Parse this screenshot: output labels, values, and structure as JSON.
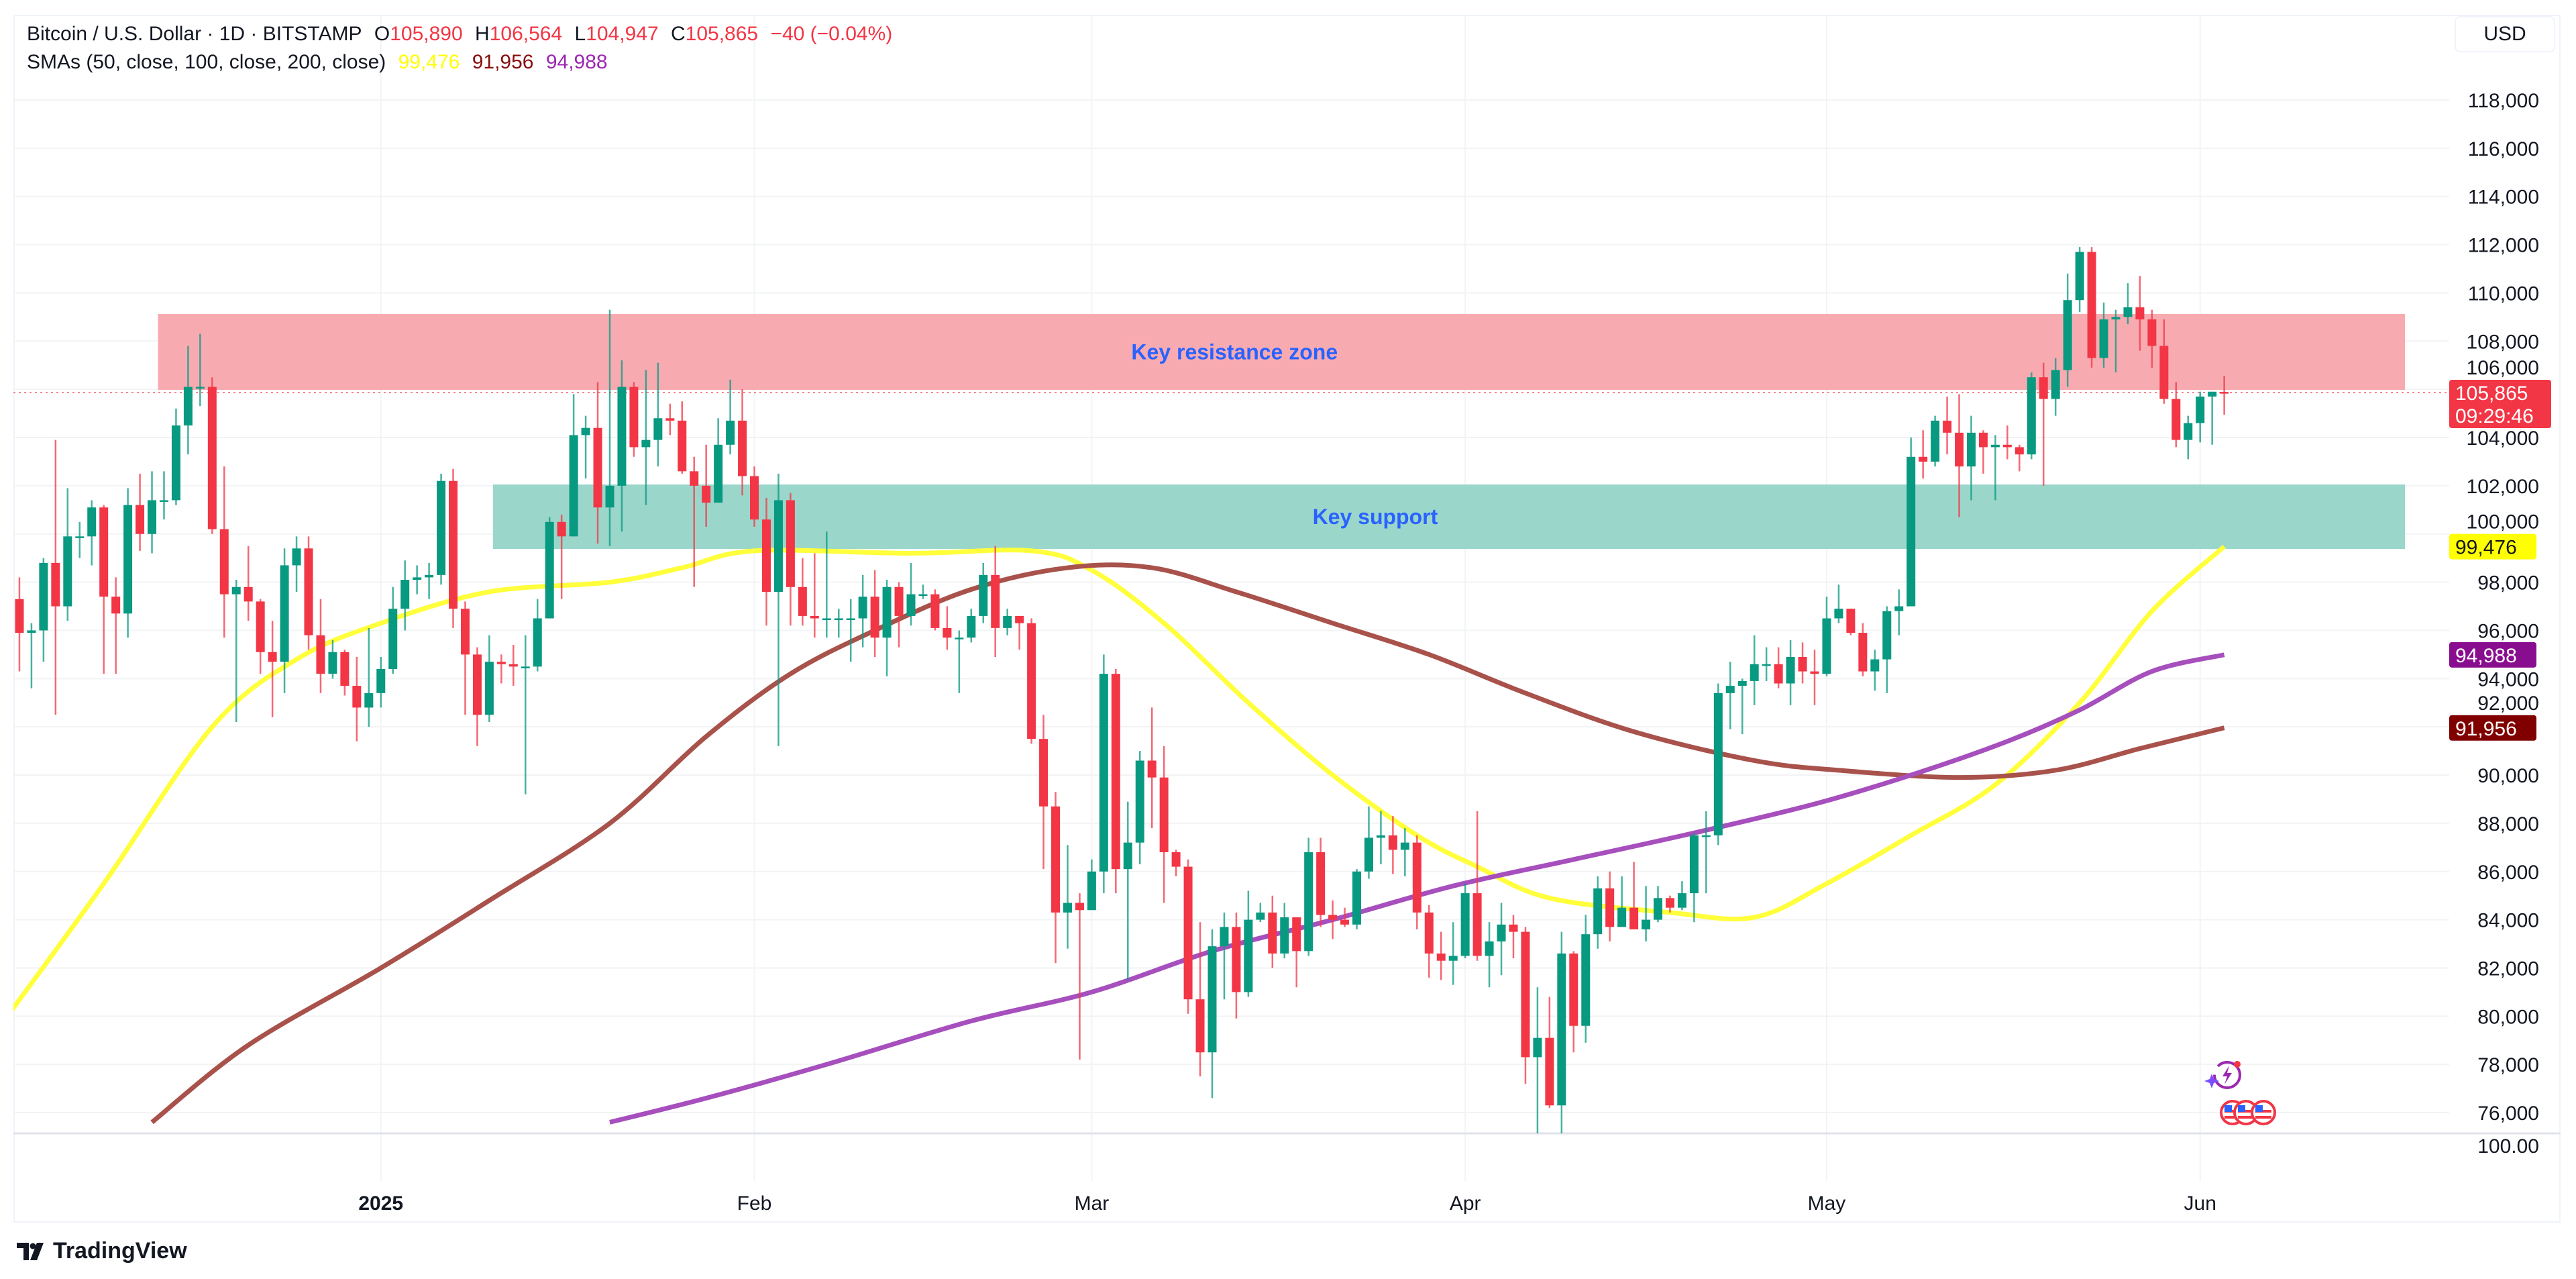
{
  "header": {
    "symbol": "Bitcoin / U.S. Dollar · 1D · BITSTAMP",
    "o_label": "O",
    "o": "105,890",
    "h_label": "H",
    "h": "106,564",
    "l_label": "L",
    "l": "104,947",
    "c_label": "C",
    "c": "105,865",
    "change": "−40 (−0.04%)",
    "sma_label": "SMAs (50, close, 100, close, 200, close)",
    "sma50": "99,476",
    "sma100": "91,956",
    "sma200": "94,988"
  },
  "currency_button": "USD",
  "branding": "TradingView",
  "colors": {
    "up": "#089981",
    "down": "#f23645",
    "sma50": "#ffff3b",
    "sma100": "#a8524b",
    "sma200": "#a64fbd",
    "resistance": "#f7a6ad",
    "support": "#96d4c8",
    "annotation": "#2962ff"
  },
  "chart_data": {
    "type": "candlestick",
    "title": "Bitcoin / U.S. Dollar · 1D · BITSTAMP",
    "start_date": "2024-12-01",
    "unit": "USD thousands",
    "first_open": 96.4,
    "close": [
      97.3,
      95.9,
      96.0,
      98.8,
      97.0,
      99.9,
      99.9,
      101.1,
      97.4,
      96.7,
      101.2,
      100.0,
      101.4,
      101.4,
      104.5,
      106.1,
      106.1,
      100.2,
      97.5,
      97.8,
      97.2,
      95.1,
      94.7,
      98.7,
      99.4,
      95.8,
      94.2,
      95.1,
      93.7,
      92.8,
      93.4,
      94.4,
      96.9,
      98.1,
      98.2,
      98.3,
      102.2,
      96.9,
      95.0,
      92.5,
      94.7,
      94.6,
      94.5,
      94.5,
      96.5,
      100.5,
      99.9,
      104.1,
      104.4,
      101.1,
      102.0,
      106.1,
      103.6,
      103.9,
      104.8,
      104.7,
      102.6,
      102.0,
      101.3,
      103.7,
      104.7,
      102.4,
      100.6,
      97.6,
      101.4,
      97.8,
      96.6,
      96.5,
      96.5,
      96.5,
      96.5,
      97.4,
      95.7,
      97.8,
      96.6,
      97.5,
      97.5,
      96.1,
      95.7,
      95.7,
      96.6,
      98.3,
      96.1,
      96.6,
      96.3,
      91.5,
      88.7,
      84.3,
      84.7,
      84.4,
      86.0,
      94.2,
      86.1,
      87.2,
      90.6,
      89.9,
      86.8,
      86.2,
      80.7,
      78.5,
      82.9,
      83.7,
      81.0,
      84.0,
      84.3,
      82.6,
      84.1,
      82.7,
      86.8,
      84.2,
      84.0,
      83.8,
      86.0,
      87.4,
      87.5,
      86.9,
      87.2,
      84.3,
      82.6,
      82.3,
      82.5,
      85.1,
      82.5,
      83.1,
      83.8,
      83.5,
      78.3,
      79.1,
      76.3,
      82.6,
      79.6,
      83.4,
      85.3,
      83.7,
      84.5,
      83.6,
      84.0,
      84.9,
      84.5,
      85.1,
      87.5,
      87.5,
      93.4,
      93.7,
      93.9,
      94.6,
      94.6,
      93.8,
      94.9,
      94.3,
      94.2,
      96.5,
      96.9,
      95.9,
      94.3,
      94.8,
      96.8,
      97.0,
      103.2,
      103.0,
      104.7,
      104.2,
      102.8,
      104.2,
      103.6,
      103.7,
      103.6,
      103.3,
      106.5,
      105.6,
      106.8,
      109.7,
      111.7,
      107.3,
      108.9,
      109.0,
      109.4,
      108.9,
      107.8,
      105.6,
      103.9,
      104.6,
      105.7,
      105.9,
      105.865
    ],
    "high": [
      98.0,
      98.2,
      96.3,
      99.0,
      103.9,
      101.9,
      100.5,
      101.4,
      101.2,
      98.2,
      101.9,
      102.5,
      102.6,
      102.6,
      105.2,
      107.8,
      108.3,
      106.5,
      102.8,
      98.1,
      99.5,
      97.3,
      96.4,
      99.4,
      99.9,
      99.9,
      97.3,
      95.6,
      95.2,
      94.9,
      96.1,
      94.9,
      97.8,
      98.9,
      98.7,
      98.8,
      102.5,
      102.7,
      97.2,
      95.3,
      95.8,
      95.0,
      95.4,
      95.8,
      97.3,
      100.7,
      100.8,
      105.8,
      104.9,
      106.3,
      109.3,
      107.2,
      106.3,
      106.8,
      107.1,
      105.4,
      105.5,
      103.2,
      103.7,
      104.8,
      106.4,
      106.0,
      102.8,
      101.5,
      102.5,
      101.7,
      99.0,
      99.2,
      100.1,
      96.9,
      97.3,
      98.3,
      98.5,
      98.1,
      98.0,
      98.8,
      97.9,
      97.7,
      97.0,
      96.0,
      96.9,
      98.8,
      99.5,
      96.9,
      96.6,
      96.5,
      92.5,
      89.3,
      87.1,
      85.1,
      86.5,
      95.0,
      94.4,
      88.9,
      91.0,
      92.8,
      91.2,
      86.9,
      86.5,
      83.9,
      83.6,
      84.3,
      84.3,
      85.2,
      84.7,
      85.0,
      84.7,
      84.0,
      87.4,
      87.4,
      84.8,
      84.5,
      86.1,
      88.7,
      88.5,
      88.3,
      87.8,
      87.5,
      84.6,
      83.5,
      83.9,
      85.5,
      88.5,
      83.9,
      84.7,
      84.2,
      83.7,
      81.2,
      80.8,
      83.5,
      82.7,
      84.2,
      85.8,
      86.0,
      85.8,
      86.4,
      85.4,
      85.4,
      85.0,
      85.6,
      87.6,
      88.5,
      93.8,
      94.7,
      94.0,
      95.8,
      95.3,
      95.3,
      95.6,
      95.5,
      95.2,
      97.4,
      97.9,
      96.9,
      96.3,
      95.2,
      97.0,
      97.7,
      104.0,
      104.3,
      104.9,
      105.7,
      105.8,
      104.9,
      104.3,
      104.1,
      104.5,
      103.7,
      106.7,
      107.1,
      107.3,
      110.8,
      111.9,
      111.9,
      109.6,
      109.3,
      110.4,
      110.7,
      109.3,
      108.9,
      106.3,
      104.9,
      105.9,
      105.9,
      106.564
    ],
    "low": [
      95.7,
      94.3,
      93.6,
      94.7,
      92.5,
      96.4,
      99.0,
      98.7,
      94.2,
      94.2,
      95.7,
      99.3,
      99.2,
      100.6,
      101.2,
      103.3,
      105.3,
      100.0,
      95.7,
      92.2,
      96.4,
      94.2,
      92.4,
      93.4,
      97.6,
      95.2,
      93.4,
      94.0,
      93.3,
      91.4,
      92.0,
      92.8,
      94.2,
      96.0,
      97.5,
      97.3,
      97.9,
      96.1,
      92.5,
      91.2,
      92.2,
      93.8,
      93.7,
      89.2,
      94.3,
      96.5,
      97.3,
      99.9,
      102.3,
      99.6,
      99.5,
      100.1,
      103.2,
      101.2,
      102.8,
      104.1,
      102.5,
      97.8,
      100.3,
      101.3,
      103.3,
      101.6,
      100.3,
      96.2,
      91.2,
      96.2,
      96.2,
      95.7,
      95.7,
      95.7,
      94.7,
      95.3,
      94.9,
      94.1,
      95.3,
      96.2,
      97.3,
      96.0,
      95.2,
      93.4,
      95.5,
      96.3,
      94.9,
      95.8,
      95.2,
      91.3,
      86.1,
      82.2,
      82.8,
      78.2,
      84.7,
      85.1,
      85.1,
      81.5,
      86.3,
      87.8,
      84.7,
      85.8,
      80.1,
      77.5,
      76.6,
      80.7,
      79.9,
      80.8,
      83.9,
      82.0,
      82.4,
      81.2,
      82.5,
      83.7,
      83.2,
      83.7,
      83.6,
      85.7,
      86.3,
      85.9,
      85.8,
      83.6,
      81.6,
      81.5,
      81.3,
      82.4,
      82.3,
      81.2,
      81.7,
      82.4,
      77.2,
      74.6,
      76.2,
      74.6,
      78.5,
      78.9,
      82.8,
      83.1,
      83.7,
      83.6,
      83.1,
      83.9,
      84.3,
      84.4,
      83.9,
      85.1,
      87.1,
      91.9,
      91.7,
      92.9,
      93.9,
      93.6,
      92.9,
      93.8,
      92.9,
      94.1,
      96.3,
      95.8,
      94.1,
      93.5,
      93.4,
      95.8,
      97.0,
      102.3,
      102.8,
      103.3,
      100.7,
      101.4,
      102.5,
      101.4,
      103.1,
      102.6,
      103.1,
      102.0,
      104.9,
      106.1,
      109.2,
      106.9,
      106.9,
      106.7,
      108.7,
      107.6,
      106.9,
      105.4,
      103.6,
      103.1,
      103.8,
      103.7,
      104.947
    ],
    "y_ticks": [
      "118,000",
      "116,000",
      "114,000",
      "112,000",
      "110,000",
      "108,000",
      "106,000",
      "104,000",
      "102,000",
      "100,000",
      "98,000",
      "96,000",
      "94,000",
      "92,000",
      "90,000",
      "88,000",
      "86,000",
      "84,000",
      "82,000",
      "80,000",
      "78,000",
      "76,000"
    ],
    "ylim": [
      75600,
      118500
    ],
    "x_ticks": [
      {
        "label": "2025",
        "day": 31,
        "bold": true
      },
      {
        "label": "Feb",
        "day": 62
      },
      {
        "label": "Mar",
        "day": 90
      },
      {
        "label": "Apr",
        "day": 121
      },
      {
        "label": "May",
        "day": 151
      },
      {
        "label": "Jun",
        "day": 182
      }
    ],
    "sma_series": [
      {
        "name": "SMA 50",
        "value_label": "99,476",
        "value": 99476,
        "points": [
          [
            0,
            80.0
          ],
          [
            8,
            85.5
          ],
          [
            17,
            92.0
          ],
          [
            24,
            94.8
          ],
          [
            31,
            96.3
          ],
          [
            40,
            97.6
          ],
          [
            50,
            98.0
          ],
          [
            56,
            98.6
          ],
          [
            62,
            99.3
          ],
          [
            75,
            99.2
          ],
          [
            85,
            99.3
          ],
          [
            90,
            98.5
          ],
          [
            96,
            96.3
          ],
          [
            103,
            93.0
          ],
          [
            110,
            90.0
          ],
          [
            117,
            87.5
          ],
          [
            122,
            86.2
          ],
          [
            128,
            84.9
          ],
          [
            138,
            84.3
          ],
          [
            145,
            84.1
          ],
          [
            151,
            85.5
          ],
          [
            158,
            87.5
          ],
          [
            165,
            89.6
          ],
          [
            172,
            93.0
          ],
          [
            178,
            96.8
          ],
          [
            184,
            99.48
          ]
        ]
      },
      {
        "name": "SMA 100",
        "value_label": "91,956",
        "value": 91956,
        "points": [
          [
            12,
            75.6
          ],
          [
            20,
            78.8
          ],
          [
            31,
            82.0
          ],
          [
            40,
            84.8
          ],
          [
            50,
            88.0
          ],
          [
            58,
            91.6
          ],
          [
            65,
            94.2
          ],
          [
            72,
            96.0
          ],
          [
            80,
            97.7
          ],
          [
            88,
            98.6
          ],
          [
            95,
            98.6
          ],
          [
            102,
            97.6
          ],
          [
            110,
            96.3
          ],
          [
            118,
            95.0
          ],
          [
            126,
            93.4
          ],
          [
            135,
            91.8
          ],
          [
            145,
            90.6
          ],
          [
            152,
            90.2
          ],
          [
            162,
            89.9
          ],
          [
            170,
            90.2
          ],
          [
            177,
            91.1
          ],
          [
            184,
            91.96
          ]
        ]
      },
      {
        "name": "SMA 200",
        "value_label": "94,988",
        "value": 94988,
        "points": [
          [
            50,
            75.6
          ],
          [
            58,
            76.6
          ],
          [
            68,
            78.0
          ],
          [
            80,
            79.8
          ],
          [
            90,
            81.0
          ],
          [
            100,
            82.7
          ],
          [
            110,
            84.0
          ],
          [
            120,
            85.4
          ],
          [
            130,
            86.5
          ],
          [
            140,
            87.6
          ],
          [
            150,
            88.8
          ],
          [
            158,
            90.0
          ],
          [
            166,
            91.4
          ],
          [
            172,
            92.7
          ],
          [
            178,
            94.3
          ],
          [
            184,
            94.99
          ]
        ]
      }
    ],
    "zones": [
      {
        "label": "Key resistance zone",
        "from_day": 12.5,
        "to_day": 199,
        "low": 105977,
        "high": 109122
      },
      {
        "label": "Key support",
        "from_day": 40.3,
        "to_day": 199,
        "low": 99380,
        "high": 102053
      }
    ],
    "last_price": {
      "value": 105865,
      "label": "105,865",
      "countdown": "09:29:46"
    },
    "lower_pane_label": "100.00"
  }
}
